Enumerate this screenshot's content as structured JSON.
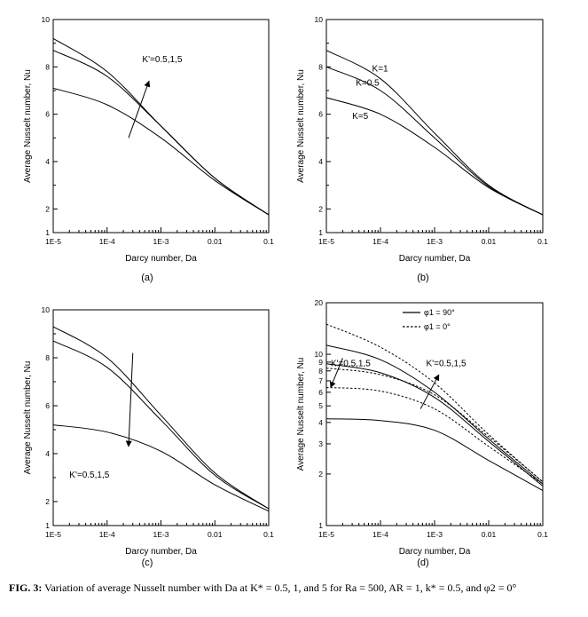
{
  "caption": {
    "label": "FIG. 3:",
    "text": "Variation of average Nusselt number with Da at K* = 0.5, 1, and 5 for Ra = 500, AR = 1, k* = 0.5, and φ2 = 0°"
  },
  "chart_data": [
    {
      "type": "line",
      "panel_label": "(a)",
      "xlabel": "Darcy number, Da",
      "ylabel": "Average Nusselt number, Nu",
      "xscale": "log",
      "yscale": "linear",
      "xlim": [
        1e-05,
        0.1
      ],
      "ylim": [
        1,
        10
      ],
      "xticks": [
        1e-05,
        0.0001,
        0.001,
        0.01,
        0.1
      ],
      "xtick_labels": [
        "1E-5",
        "1E-4",
        "1E-3",
        "0.01",
        "0.1"
      ],
      "yticks": [
        1,
        2,
        4,
        6,
        8,
        10
      ],
      "ytick_labels": [
        "1",
        "2",
        "4",
        "6",
        "8",
        "10"
      ],
      "series": [
        {
          "x": [
            1e-05,
            0.0001,
            0.001,
            0.01,
            0.1
          ],
          "y": [
            9.2,
            7.8,
            5.5,
            3.3,
            1.75
          ]
        },
        {
          "x": [
            1e-05,
            0.0001,
            0.001,
            0.01,
            0.1
          ],
          "y": [
            8.7,
            7.6,
            5.5,
            3.3,
            1.75
          ]
        },
        {
          "x": [
            1e-05,
            0.0001,
            0.001,
            0.01,
            0.1
          ],
          "y": [
            7.1,
            6.4,
            5.0,
            3.2,
            1.75
          ]
        }
      ],
      "annotations": [
        {
          "text": "K'=0.5,1,5",
          "x": 0.00045,
          "y": 8.2
        },
        {
          "arrow": true,
          "from": [
            0.00025,
            5.0
          ],
          "to": [
            0.0006,
            7.4
          ]
        }
      ]
    },
    {
      "type": "line",
      "panel_label": "(b)",
      "xlabel": "Darcy number, Da",
      "ylabel": "Average Nusselt number, Nu",
      "xscale": "log",
      "yscale": "linear",
      "xlim": [
        1e-05,
        0.1
      ],
      "ylim": [
        1,
        10
      ],
      "xticks": [
        1e-05,
        0.0001,
        0.001,
        0.01,
        0.1
      ],
      "xtick_labels": [
        "1E-5",
        "1E-4",
        "1E-3",
        "0.01",
        "0.1"
      ],
      "yticks": [
        1,
        2,
        4,
        6,
        8,
        10
      ],
      "ytick_labels": [
        "1",
        "2",
        "4",
        "6",
        "8",
        "10"
      ],
      "series": [
        {
          "name": "K=1",
          "x": [
            1e-05,
            0.0001,
            0.001,
            0.01,
            0.1
          ],
          "y": [
            8.7,
            7.5,
            5.2,
            3.0,
            1.75
          ]
        },
        {
          "name": "K=0.5",
          "x": [
            1e-05,
            0.0001,
            0.001,
            0.01,
            0.1
          ],
          "y": [
            8.0,
            7.0,
            5.0,
            2.95,
            1.75
          ]
        },
        {
          "name": "K=5",
          "x": [
            1e-05,
            0.0001,
            0.001,
            0.01,
            0.1
          ],
          "y": [
            6.7,
            6.0,
            4.6,
            2.9,
            1.75
          ]
        }
      ],
      "annotations": [
        {
          "text": "K=1",
          "x": 7e-05,
          "y": 7.8
        },
        {
          "text": "K=0.5",
          "x": 3.5e-05,
          "y": 7.2
        },
        {
          "text": "K=5",
          "x": 3e-05,
          "y": 5.8
        }
      ]
    },
    {
      "type": "line",
      "panel_label": "(c)",
      "xlabel": "Darcy number, Da",
      "ylabel": "Average Nusselt number, Nu",
      "xscale": "log",
      "yscale": "linear",
      "xlim": [
        1e-05,
        0.1
      ],
      "ylim": [
        1,
        10
      ],
      "xticks": [
        1e-05,
        0.0001,
        0.001,
        0.01,
        0.1
      ],
      "xtick_labels": [
        "1E-5",
        "1E-4",
        "1E-3",
        "0.01",
        "0.1"
      ],
      "yticks": [
        1,
        2,
        4,
        6,
        8,
        10
      ],
      "ytick_labels": [
        "1",
        "2",
        "4",
        "6",
        "8",
        "10"
      ],
      "series": [
        {
          "x": [
            1e-05,
            0.0001,
            0.001,
            0.01,
            0.1
          ],
          "y": [
            9.3,
            8.0,
            5.6,
            3.2,
            1.7
          ]
        },
        {
          "x": [
            1e-05,
            0.0001,
            0.001,
            0.01,
            0.1
          ],
          "y": [
            8.7,
            7.6,
            5.4,
            3.1,
            1.7
          ]
        },
        {
          "x": [
            1e-05,
            0.0001,
            0.001,
            0.01,
            0.1
          ],
          "y": [
            5.2,
            4.9,
            4.1,
            2.7,
            1.6
          ]
        }
      ],
      "annotations": [
        {
          "text": "K'=0.5,1,5",
          "x": 2e-05,
          "y": 3.0
        },
        {
          "arrow": true,
          "from": [
            0.0003,
            8.2
          ],
          "to": [
            0.00025,
            4.3
          ]
        }
      ]
    },
    {
      "type": "line",
      "panel_label": "(d)",
      "xlabel": "Darcy number, Da",
      "ylabel": "Average Nusselt number, Nu",
      "xscale": "log",
      "yscale": "log",
      "xlim": [
        1e-05,
        0.1
      ],
      "ylim": [
        1,
        20
      ],
      "xticks": [
        1e-05,
        0.0001,
        0.001,
        0.01,
        0.1
      ],
      "xtick_labels": [
        "1E-5",
        "1E-4",
        "1E-3",
        "0.01",
        "0.1"
      ],
      "yticks": [
        1,
        2,
        3,
        4,
        5,
        6,
        7,
        8,
        9,
        10,
        20
      ],
      "ytick_labels": [
        "1",
        "2",
        "3",
        "4",
        "5",
        "6",
        "7",
        "8",
        "9",
        "10",
        "20"
      ],
      "legend": {
        "position": "top-center",
        "entries": [
          {
            "label": "φ1 = 90°",
            "style": "solid"
          },
          {
            "label": "φ1 = 0°",
            "style": "dashed"
          }
        ]
      },
      "series": [
        {
          "name": "φ1 = 90°",
          "style": "solid",
          "x": [
            1e-05,
            0.0001,
            0.001,
            0.01,
            0.1
          ],
          "y": [
            11.3,
            9.3,
            6.0,
            3.2,
            1.75
          ]
        },
        {
          "name": "φ1 = 90°",
          "style": "solid",
          "x": [
            1e-05,
            0.0001,
            0.001,
            0.01,
            0.1
          ],
          "y": [
            8.8,
            7.8,
            5.6,
            3.1,
            1.7
          ]
        },
        {
          "name": "φ1 = 90°",
          "style": "solid",
          "x": [
            1e-05,
            0.0001,
            0.001,
            0.01,
            0.1
          ],
          "y": [
            4.2,
            4.1,
            3.6,
            2.4,
            1.6
          ]
        },
        {
          "name": "φ1 = 0°",
          "style": "dashed",
          "x": [
            1e-05,
            0.0001,
            0.001,
            0.01,
            0.1
          ],
          "y": [
            15.0,
            11.0,
            6.8,
            3.4,
            1.8
          ]
        },
        {
          "name": "φ1 = 0°",
          "style": "dashed",
          "x": [
            1e-05,
            0.0001,
            0.001,
            0.01,
            0.1
          ],
          "y": [
            8.3,
            7.6,
            5.8,
            3.3,
            1.8
          ]
        },
        {
          "name": "φ1 = 0°",
          "style": "dashed",
          "x": [
            1e-05,
            0.0001,
            0.001,
            0.01,
            0.1
          ],
          "y": [
            6.4,
            6.1,
            4.8,
            2.9,
            1.75
          ]
        }
      ],
      "annotations": [
        {
          "text": "K'=0.5,1,5",
          "x": 1.2e-05,
          "y": 8.5
        },
        {
          "text": "K'=0.5,1,5",
          "x": 0.0007,
          "y": 8.5
        },
        {
          "arrow": true,
          "from": [
            2e-05,
            9.5
          ],
          "to": [
            1.2e-05,
            6.4
          ]
        },
        {
          "arrow": true,
          "from": [
            0.00055,
            4.8
          ],
          "to": [
            0.0012,
            7.6
          ]
        }
      ]
    }
  ]
}
